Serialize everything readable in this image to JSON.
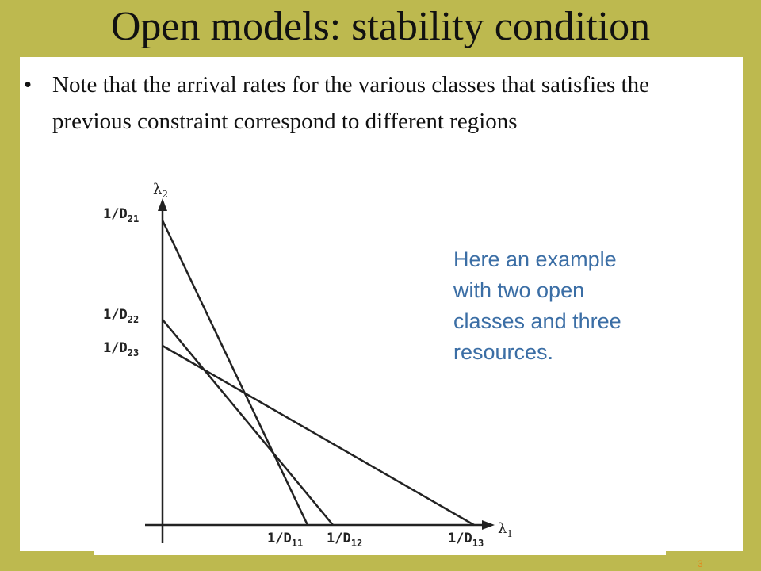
{
  "header": {
    "title": "Open models: stability condition"
  },
  "bullets": [
    "Note that the arrival rates for the various classes that satisfies the previous constraint correspond to different regions"
  ],
  "diagram": {
    "y_axis_label": {
      "text": "λ",
      "sub": "2"
    },
    "x_axis_label": {
      "text": "λ",
      "sub": "1"
    },
    "y_labels": [
      {
        "text": "1/D",
        "sub": "21"
      },
      {
        "text": "1/D",
        "sub": "22"
      },
      {
        "text": "1/D",
        "sub": "23"
      }
    ],
    "x_labels": [
      {
        "text": "1/D",
        "sub": "11"
      },
      {
        "text": "1/D",
        "sub": "12"
      },
      {
        "text": "1/D",
        "sub": "13"
      }
    ],
    "note": [
      "Here an example",
      "with two open",
      "classes and three",
      "resources."
    ]
  },
  "footer": {
    "page_number": "3"
  }
}
